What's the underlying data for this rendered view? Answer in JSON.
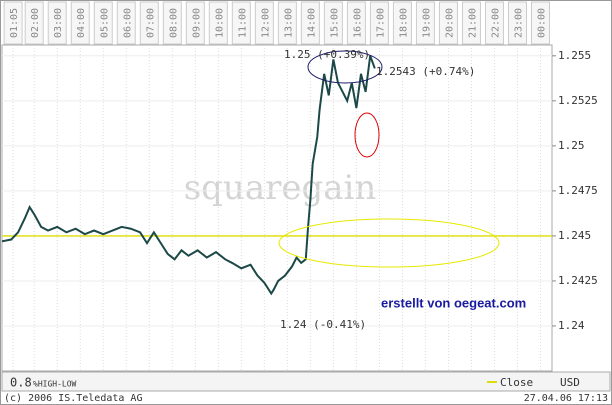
{
  "chart_data": {
    "type": "line",
    "x": [
      0.6,
      1.0,
      1.3,
      1.6,
      1.8,
      2.0,
      2.3,
      2.6,
      3.0,
      3.4,
      3.8,
      4.2,
      4.6,
      5.0,
      5.4,
      5.8,
      6.2,
      6.6,
      6.9,
      7.2,
      7.5,
      7.8,
      8.1,
      8.4,
      8.7,
      9.1,
      9.5,
      9.9,
      10.3,
      10.6,
      11.0,
      11.4,
      11.7,
      12.0,
      12.3,
      12.4,
      12.6,
      12.9,
      13.2,
      13.4,
      13.6,
      13.8,
      13.9,
      14.0,
      14.1,
      14.3,
      14.4,
      14.6,
      14.8,
      15.0,
      15.2,
      15.4,
      15.6,
      15.8,
      16.0,
      16.2,
      16.4,
      16.6,
      16.8
    ],
    "values": [
      1.2447,
      1.2448,
      1.2452,
      1.246,
      1.2466,
      1.2462,
      1.2455,
      1.2453,
      1.2455,
      1.2452,
      1.2454,
      1.2451,
      1.2453,
      1.2451,
      1.2453,
      1.2455,
      1.2454,
      1.2452,
      1.2446,
      1.2452,
      1.2446,
      1.244,
      1.2437,
      1.2442,
      1.2439,
      1.2442,
      1.2438,
      1.2441,
      1.2437,
      1.2435,
      1.2432,
      1.2434,
      1.2428,
      1.2424,
      1.2418,
      1.242,
      1.2425,
      1.2428,
      1.2433,
      1.2438,
      1.2435,
      1.2437,
      1.2455,
      1.247,
      1.249,
      1.2505,
      1.252,
      1.254,
      1.2528,
      1.2548,
      1.2535,
      1.253,
      1.2525,
      1.2535,
      1.2521,
      1.254,
      1.253,
      1.255,
      1.2543
    ],
    "color": "#1c4848",
    "reference_line": {
      "name": "Close",
      "value": 1.245,
      "color": "#dede00"
    },
    "xlim": [
      0.6,
      24.5
    ],
    "xticks": [
      {
        "value": 1.083,
        "label": "01:05"
      },
      {
        "value": 2,
        "label": "02:00"
      },
      {
        "value": 3,
        "label": "03:00"
      },
      {
        "value": 4,
        "label": "04:00"
      },
      {
        "value": 5,
        "label": "05:00"
      },
      {
        "value": 6,
        "label": "06:00"
      },
      {
        "value": 7,
        "label": "07:00"
      },
      {
        "value": 8,
        "label": "08:00"
      },
      {
        "value": 9,
        "label": "09:00"
      },
      {
        "value": 10,
        "label": "10:00"
      },
      {
        "value": 11,
        "label": "11:00"
      },
      {
        "value": 12,
        "label": "12:00"
      },
      {
        "value": 13,
        "label": "13:00"
      },
      {
        "value": 14,
        "label": "14:00"
      },
      {
        "value": 15,
        "label": "15:00"
      },
      {
        "value": 16,
        "label": "16:00"
      },
      {
        "value": 17,
        "label": "17:00"
      },
      {
        "value": 18,
        "label": "18:00"
      },
      {
        "value": 19,
        "label": "19:00"
      },
      {
        "value": 20,
        "label": "20:00"
      },
      {
        "value": 21,
        "label": "21:00"
      },
      {
        "value": 22,
        "label": "22:00"
      },
      {
        "value": 23,
        "label": "23:00"
      },
      {
        "value": 24,
        "label": "00:00"
      }
    ],
    "ylim": [
      1.2375,
      1.2556
    ],
    "yticks": [
      1.24,
      1.2425,
      1.245,
      1.2475,
      1.25,
      1.2525,
      1.255
    ],
    "grid": true,
    "annotations": [
      "1.25 (+0.39%)",
      "1.2543 (+0.74%)",
      "1.24 (-0.41%)"
    ],
    "watermark": "squaregain",
    "credit": "erstellt von oegeat.com",
    "scale_value": "0.8",
    "scale_label": "%HIGH-LOW",
    "currency": "USD",
    "copyright": "(c) 2006 IS.Teledata AG",
    "timestamp": "27.04.06 17:13"
  }
}
